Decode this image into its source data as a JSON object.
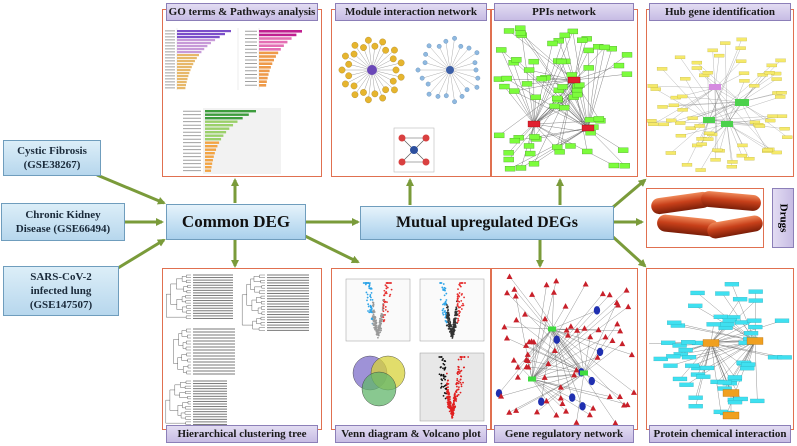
{
  "headers": {
    "go": "GO terms & Pathways analysis",
    "module": "Module interaction network",
    "ppi": "PPIs network",
    "hub": "Hub gene identification",
    "cluster": "Hierarchical clustering tree",
    "venn": "Venn diagram & Volcano plot",
    "grn": "Gene regulatory network",
    "pci": "Protein chemical interaction"
  },
  "sources": {
    "cf": {
      "line1": "Cystic Fibrosis",
      "line2": "(GSE38267)"
    },
    "ckd": {
      "line1": "Chronic Kidney",
      "line2": "Disease  (GSE66494)"
    },
    "sars": {
      "line1": "SARS-CoV-2",
      "line2": "infected lung",
      "line3": "(GSE147507)"
    }
  },
  "center": {
    "common": "Common DEG",
    "mutual": "Mutual upregulated DEGs"
  },
  "drugs": "Drugs",
  "colors": {
    "arrow": "#7a9b3a",
    "panel_border": "#e07050",
    "header_fill": "#cfc6e8",
    "green_node": "#7cfc3c",
    "red_node": "#e02030",
    "cyan_node": "#3fe0f0",
    "orange_node": "#f0a020"
  }
}
